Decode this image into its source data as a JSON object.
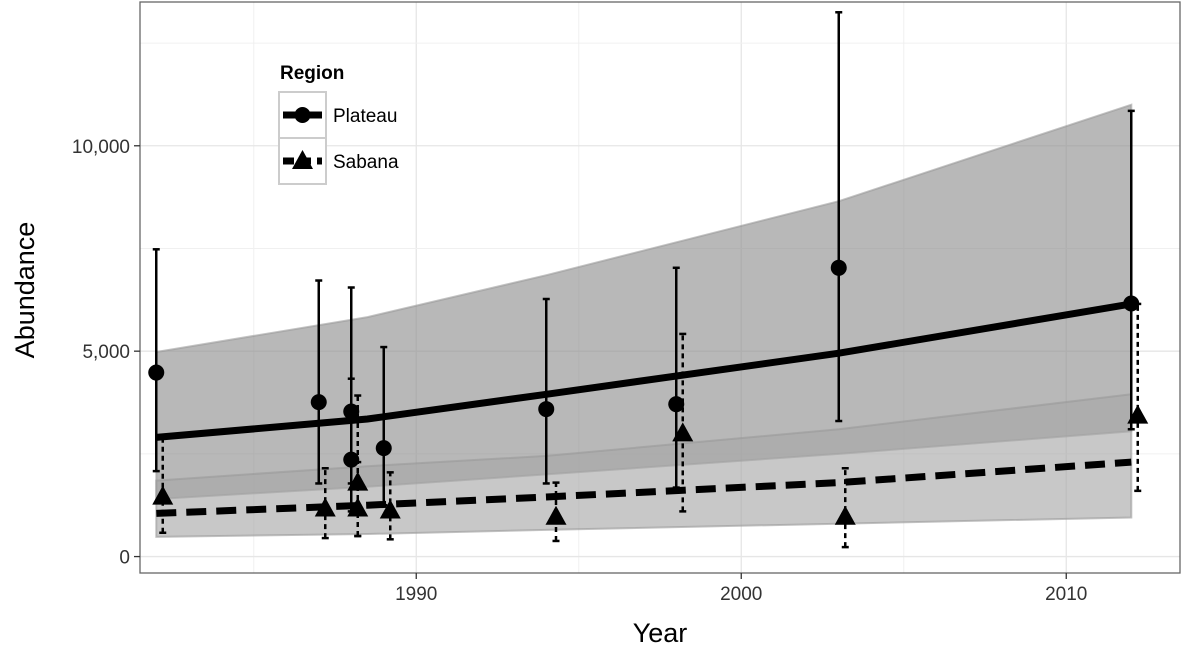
{
  "chart_data": {
    "type": "line",
    "xlabel": "Year",
    "ylabel": "Abundance",
    "xlim": [
      1981.5,
      2013.5
    ],
    "ylim": [
      -400,
      13500
    ],
    "x_ticks": [
      1990,
      2000,
      2010
    ],
    "x_tick_labels": [
      "1990",
      "2000",
      "2010"
    ],
    "x_minor_ticks": [
      1985,
      1995,
      2005
    ],
    "y_ticks": [
      0,
      5000,
      10000
    ],
    "y_tick_labels": [
      "0",
      "5,000",
      "10,000"
    ],
    "grid": true,
    "legend": {
      "title": "Region",
      "position": "top-left",
      "entries": [
        "Plateau",
        "Sabana"
      ]
    },
    "series": [
      {
        "name": "Plateau",
        "color": "#000000",
        "line_style": "solid",
        "marker": "circle",
        "band_color": "#8c8c8c",
        "fit": {
          "x": [
            1982,
            1988.5,
            1994,
            2003,
            2012
          ],
          "y": [
            2900,
            3350,
            3950,
            4950,
            6150
          ]
        },
        "band": {
          "x": [
            1982,
            1988.5,
            1994,
            2003,
            2012
          ],
          "lower": [
            1400,
            1700,
            2000,
            2500,
            3050
          ],
          "upper": [
            4980,
            5830,
            6850,
            8650,
            11000
          ]
        },
        "points": [
          {
            "x": 1982,
            "y": 4480,
            "lo": 2080,
            "hi": 7480
          },
          {
            "x": 1987,
            "y": 3760,
            "lo": 1780,
            "hi": 6720
          },
          {
            "x": 1988,
            "y": 3530,
            "lo": 1780,
            "hi": 6550
          },
          {
            "x": 1988,
            "y": 2360,
            "lo": 1100,
            "hi": 4330
          },
          {
            "x": 1989,
            "y": 2640,
            "lo": 1250,
            "hi": 5100
          },
          {
            "x": 1994,
            "y": 3590,
            "lo": 1780,
            "hi": 6270
          },
          {
            "x": 1998,
            "y": 3710,
            "lo": 1680,
            "hi": 7030
          },
          {
            "x": 2003,
            "y": 7030,
            "lo": 3300,
            "hi": 13250
          },
          {
            "x": 2012,
            "y": 6160,
            "lo": 3100,
            "hi": 10850
          }
        ]
      },
      {
        "name": "Sabana",
        "color": "#000000",
        "line_style": "dashed",
        "marker": "triangle",
        "band_color": "#a6a6a6",
        "fit": {
          "x": [
            1982,
            1988.5,
            1994,
            2003,
            2012
          ],
          "y": [
            1050,
            1250,
            1450,
            1800,
            2300
          ]
        },
        "band": {
          "x": [
            1982,
            1988.5,
            1994,
            2003,
            2012
          ],
          "lower": [
            480,
            550,
            650,
            800,
            950
          ],
          "upper": [
            1850,
            2200,
            2450,
            3100,
            3950
          ]
        },
        "points": [
          {
            "x": 1982.2,
            "y": 1460,
            "lo": 580,
            "hi": 2900
          },
          {
            "x": 1987.2,
            "y": 1170,
            "lo": 450,
            "hi": 2150
          },
          {
            "x": 1988.2,
            "y": 1800,
            "lo": 500,
            "hi": 3920
          },
          {
            "x": 1988.2,
            "y": 1170,
            "lo": 500,
            "hi": 2300
          },
          {
            "x": 1989.2,
            "y": 1120,
            "lo": 420,
            "hi": 2050
          },
          {
            "x": 1994.3,
            "y": 970,
            "lo": 380,
            "hi": 1800
          },
          {
            "x": 1998.2,
            "y": 3000,
            "lo": 1100,
            "hi": 5420
          },
          {
            "x": 2003.2,
            "y": 970,
            "lo": 230,
            "hi": 2150
          },
          {
            "x": 2012.2,
            "y": 3430,
            "lo": 1600,
            "hi": 6150
          }
        ]
      }
    ]
  }
}
